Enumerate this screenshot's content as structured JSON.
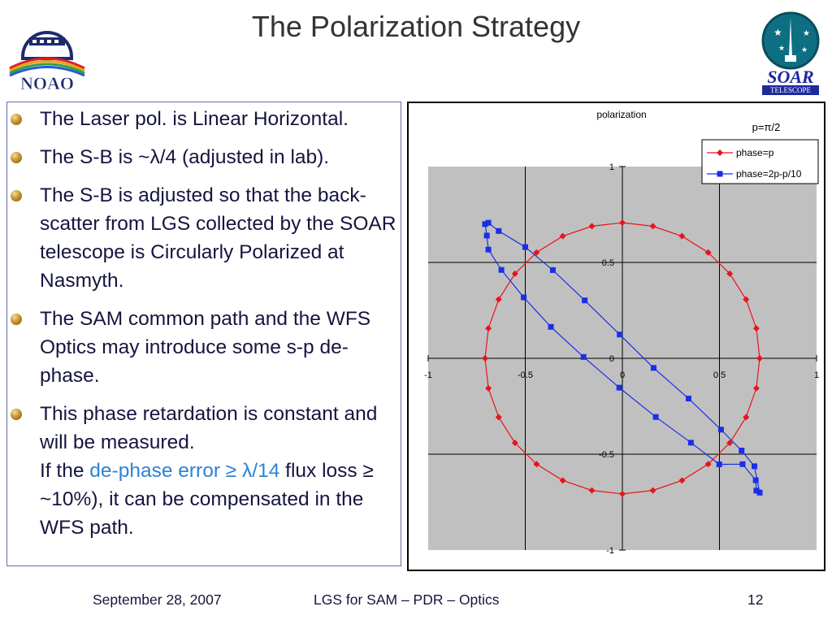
{
  "slide": {
    "title": "The Polarization Strategy"
  },
  "logos": {
    "noao_text": "NOAO",
    "soar_text": "SOAR",
    "soar_subtext": "TELESCOPE"
  },
  "bullets": [
    {
      "text": "The Laser pol. is Linear Horizontal."
    },
    {
      "text": "The S-B is ~λ/4 (adjusted in lab)."
    },
    {
      "text": "The S-B is adjusted so that the back-scatter from LGS collected by the SOAR telescope is Circularly Polarized at Nasmyth."
    },
    {
      "text": "The SAM common path and the WFS Optics may introduce some s-p de-phase."
    },
    {
      "text": "This phase retardation is constant and will be measured.",
      "line2_before": "If the ",
      "line2_highlight": "de-phase error ≥ λ/14",
      "line2_after": " flux loss ≥ ~10%), it can be compensated in the WFS path."
    }
  ],
  "footer": {
    "date": "September 28, 2007",
    "center": "LGS for SAM – PDR – Optics",
    "page": "12"
  },
  "colors": {
    "circle_series": "#e8141a",
    "ellipse_series": "#1a2ee8",
    "plot_background": "#c0c0c0",
    "accent_text": "#2c82d8"
  },
  "chart_data": {
    "type": "scatter",
    "title": "polarization",
    "annotation": "p=π/2",
    "xlim": [
      -1,
      1
    ],
    "ylim": [
      -1,
      1
    ],
    "x_ticks": [
      "-1",
      "-0.5",
      "0",
      "0.5",
      "1"
    ],
    "y_ticks": [
      "1",
      "0.5",
      "0",
      "-0.5",
      "-1"
    ],
    "grid": true,
    "legend_position": "top-right",
    "series": [
      {
        "name": "phase=p",
        "marker": "diamond",
        "points": [
          [
            0.707,
            0
          ],
          [
            0.69,
            0.156
          ],
          [
            0.637,
            0.307
          ],
          [
            0.553,
            0.441
          ],
          [
            0.442,
            0.552
          ],
          [
            0.307,
            0.637
          ],
          [
            0.157,
            0.689
          ],
          [
            0,
            0.707
          ],
          [
            -0.157,
            0.689
          ],
          [
            -0.307,
            0.637
          ],
          [
            -0.442,
            0.552
          ],
          [
            -0.553,
            0.441
          ],
          [
            -0.637,
            0.307
          ],
          [
            -0.69,
            0.156
          ],
          [
            -0.707,
            0
          ],
          [
            -0.69,
            -0.156
          ],
          [
            -0.637,
            -0.307
          ],
          [
            -0.553,
            -0.441
          ],
          [
            -0.442,
            -0.552
          ],
          [
            -0.307,
            -0.637
          ],
          [
            -0.157,
            -0.689
          ],
          [
            0,
            -0.707
          ],
          [
            0.157,
            -0.689
          ],
          [
            0.307,
            -0.637
          ],
          [
            0.442,
            -0.552
          ],
          [
            0.553,
            -0.441
          ],
          [
            0.637,
            -0.307
          ],
          [
            0.69,
            -0.156
          ],
          [
            0.707,
            0
          ]
        ]
      },
      {
        "name": "phase=2p-p/10",
        "marker": "square",
        "points": [
          [
            0.707,
            -0.7
          ],
          [
            0.69,
            -0.69
          ],
          [
            0.687,
            -0.636
          ],
          [
            0.619,
            -0.552
          ],
          [
            0.499,
            -0.553
          ],
          [
            0.353,
            -0.44
          ],
          [
            0.172,
            -0.306
          ],
          [
            -0.016,
            -0.153
          ],
          [
            -0.2,
            0.007
          ],
          [
            -0.368,
            0.164
          ],
          [
            -0.508,
            0.318
          ],
          [
            -0.623,
            0.461
          ],
          [
            -0.69,
            0.567
          ],
          [
            -0.698,
            0.64
          ],
          [
            -0.707,
            0.7
          ],
          [
            -0.69,
            0.707
          ],
          [
            -0.637,
            0.664
          ],
          [
            -0.5,
            0.58
          ],
          [
            -0.358,
            0.46
          ],
          [
            -0.194,
            0.302
          ],
          [
            -0.014,
            0.124
          ],
          [
            0.161,
            -0.05
          ],
          [
            0.341,
            -0.21
          ],
          [
            0.508,
            -0.372
          ],
          [
            0.614,
            -0.481
          ],
          [
            0.68,
            -0.563
          ],
          [
            0.707,
            -0.7
          ]
        ]
      }
    ]
  }
}
